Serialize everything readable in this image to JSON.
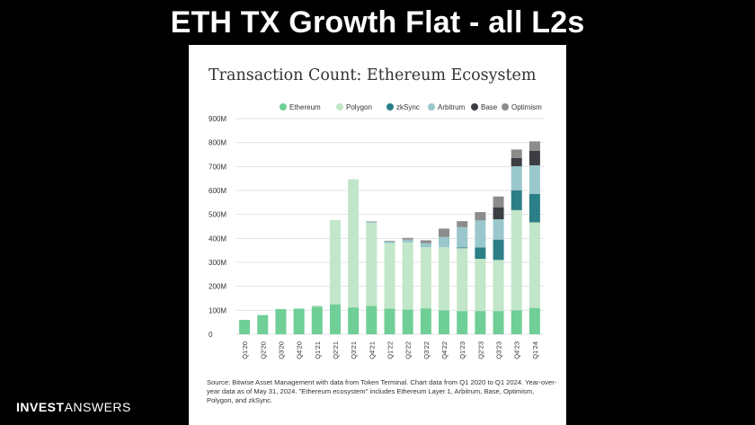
{
  "slide": {
    "title": "ETH TX Growth Flat - all L2s"
  },
  "brand": {
    "part1": "INVEST",
    "part2": "ANSWERS"
  },
  "chart_data": {
    "type": "bar",
    "stacked": true,
    "title": "Transaction Count: Ethereum Ecosystem",
    "xlabel": "",
    "ylabel": "",
    "ylim": [
      0,
      900
    ],
    "yticks": [
      "0",
      "100M",
      "200M",
      "300M",
      "400M",
      "500M",
      "600M",
      "700M",
      "800M",
      "900M"
    ],
    "grid": true,
    "legend_position": "top",
    "categories": [
      "Q1'20",
      "Q2'20",
      "Q3'20",
      "Q4'20",
      "Q1'21",
      "Q2'21",
      "Q3'21",
      "Q4'21",
      "Q1'22",
      "Q2'22",
      "Q3'22",
      "Q4'22",
      "Q1'23",
      "Q2'23",
      "Q3'23",
      "Q4'23",
      "Q1'24"
    ],
    "series": [
      {
        "name": "Ethereum",
        "color": "#6fcf97",
        "values": [
          60,
          80,
          105,
          107,
          115,
          125,
          112,
          118,
          107,
          103,
          108,
          100,
          97,
          97,
          97,
          100,
          110
        ]
      },
      {
        "name": "Polygon",
        "color": "#c2e6c9",
        "values": [
          0,
          0,
          0,
          0,
          5,
          352,
          535,
          347,
          273,
          280,
          255,
          263,
          262,
          218,
          213,
          418,
          357
        ]
      },
      {
        "name": "zkSync",
        "color": "#2c7f87",
        "values": [
          0,
          0,
          0,
          0,
          0,
          0,
          0,
          0,
          0,
          0,
          0,
          0,
          3,
          47,
          85,
          83,
          118
        ]
      },
      {
        "name": "Arbitrum",
        "color": "#9ac7cc",
        "values": [
          0,
          0,
          0,
          0,
          0,
          0,
          0,
          4,
          7,
          12,
          17,
          43,
          85,
          113,
          85,
          100,
          120
        ]
      },
      {
        "name": "Base",
        "color": "#3c3e43",
        "values": [
          0,
          0,
          0,
          0,
          0,
          0,
          0,
          0,
          0,
          0,
          0,
          0,
          0,
          0,
          50,
          35,
          60
        ]
      },
      {
        "name": "Optimism",
        "color": "#8c8c8c",
        "values": [
          0,
          0,
          0,
          0,
          0,
          0,
          0,
          2,
          3,
          7,
          12,
          35,
          25,
          35,
          45,
          35,
          40
        ]
      }
    ]
  },
  "source_note": "Source: Bitwise Asset Management with data from Token Terminal. Chart data from Q1 2020 to Q1 2024. Year-over-year data as of May 31, 2024. \"Ethereum ecosystem\" includes Ethereum Layer 1, Arbitrum, Base, Optimism, Polygon, and zkSync."
}
